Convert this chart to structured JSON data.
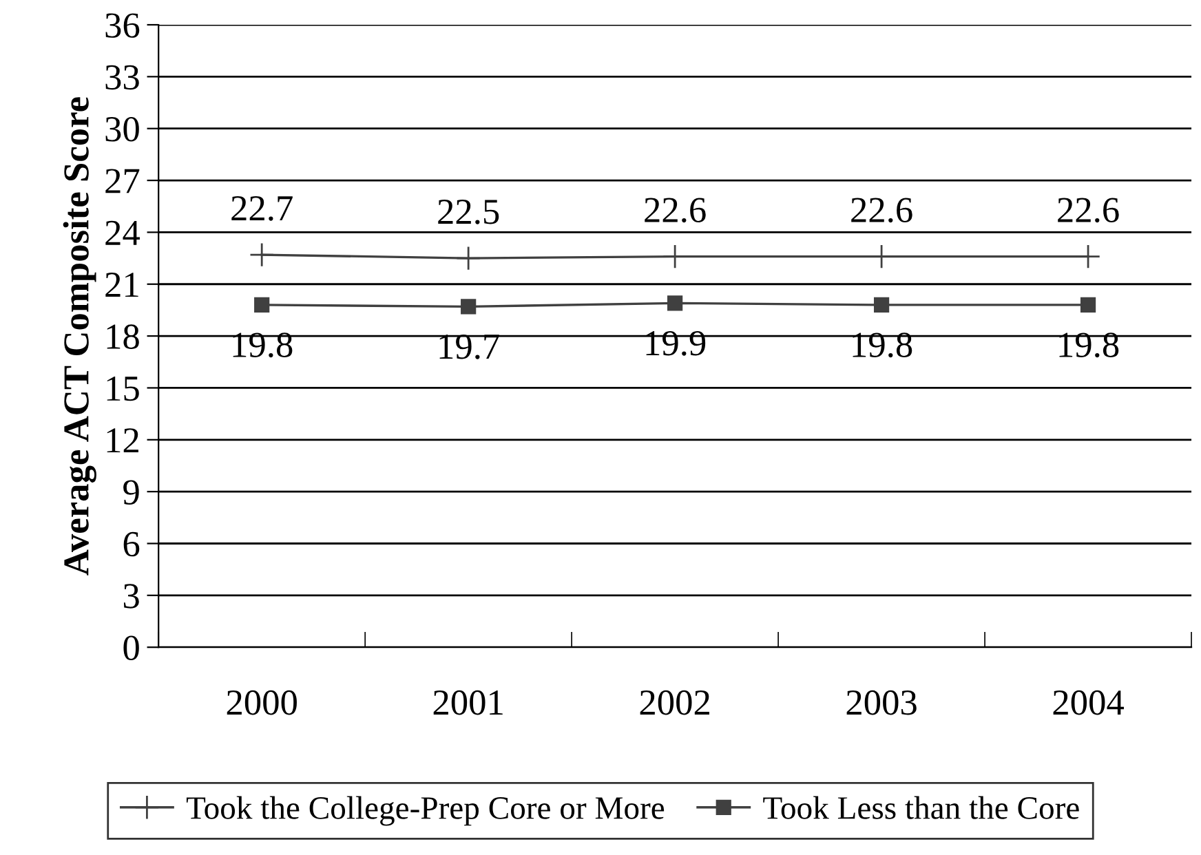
{
  "chart_data": {
    "type": "line",
    "ylabel": "Average ACT Composite Score",
    "categories": [
      "2000",
      "2001",
      "2002",
      "2003",
      "2004"
    ],
    "series": [
      {
        "name": "Took the College-Prep Core or More",
        "color": "#404040",
        "values": [
          22.7,
          22.5,
          22.6,
          22.6,
          22.6
        ],
        "marker": "cross"
      },
      {
        "name": "Took Less than the Core",
        "color": "#404040",
        "values": [
          19.8,
          19.7,
          19.9,
          19.8,
          19.8
        ],
        "marker": "square"
      }
    ],
    "ylim": [
      0,
      36
    ],
    "yticks": [
      0,
      3,
      6,
      9,
      12,
      15,
      18,
      21,
      24,
      27,
      30,
      33,
      36
    ],
    "grid": "y",
    "legend": "bottom",
    "data_labels": true
  }
}
